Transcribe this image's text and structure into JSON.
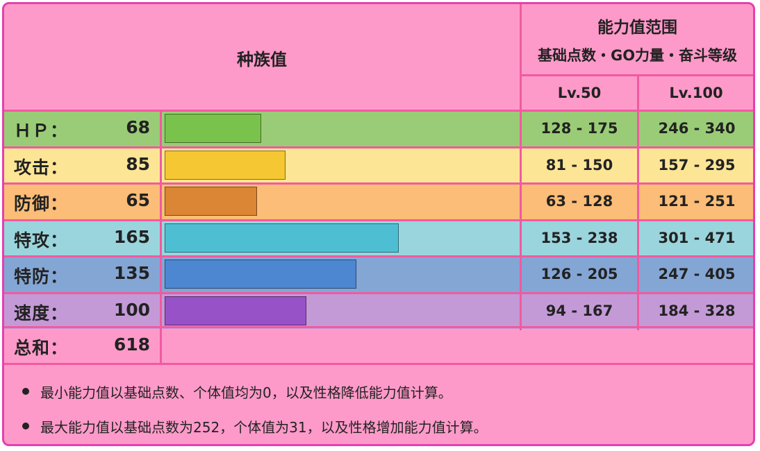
{
  "chart_data": {
    "type": "bar",
    "header": {
      "base_stats_title": "种族值",
      "range_title": "能力值范围",
      "range_subtitle": "基础点数・GO力量・奋斗等级",
      "lv50": "Lv.50",
      "lv100": "Lv.100"
    },
    "stats": [
      {
        "label": "ＨＰ：",
        "value": "68",
        "base": 68,
        "lv50": "128 - 175",
        "lv100": "246 - 340",
        "row_color": "#9acc77",
        "bar_color": "#79c34c"
      },
      {
        "label": "攻击：",
        "value": "85",
        "base": 85,
        "lv50": "81 - 150",
        "lv100": "157 - 295",
        "row_color": "#fde596",
        "bar_color": "#f5c732"
      },
      {
        "label": "防御：",
        "value": "65",
        "base": 65,
        "lv50": "63 - 128",
        "lv100": "121 - 251",
        "row_color": "#fbbd77",
        "bar_color": "#da8634"
      },
      {
        "label": "特攻：",
        "value": "165",
        "base": 165,
        "lv50": "153 - 238",
        "lv100": "301 - 471",
        "row_color": "#9ad5dd",
        "bar_color": "#4ebfd3"
      },
      {
        "label": "特防：",
        "value": "135",
        "base": 135,
        "lv50": "126 - 205",
        "lv100": "247 - 405",
        "row_color": "#84a6d5",
        "bar_color": "#4d87d1"
      },
      {
        "label": "速度：",
        "value": "100",
        "base": 100,
        "lv50": "94 - 167",
        "lv100": "184 - 328",
        "row_color": "#c39ad6",
        "bar_color": "#9852c8"
      }
    ],
    "total": {
      "label": "总和：",
      "value": "618"
    },
    "bar_scale_max": 250
  },
  "notes": [
    "最小能力值以基础点数、个体值均为0，以及性格降低能力值计算。",
    "最大能力值以基础点数为252，个体值为31，以及性格增加能力值计算。"
  ],
  "colors": {
    "background": "#fe9ac9",
    "border": "#e43fb0",
    "grid": "#f05aa0"
  }
}
